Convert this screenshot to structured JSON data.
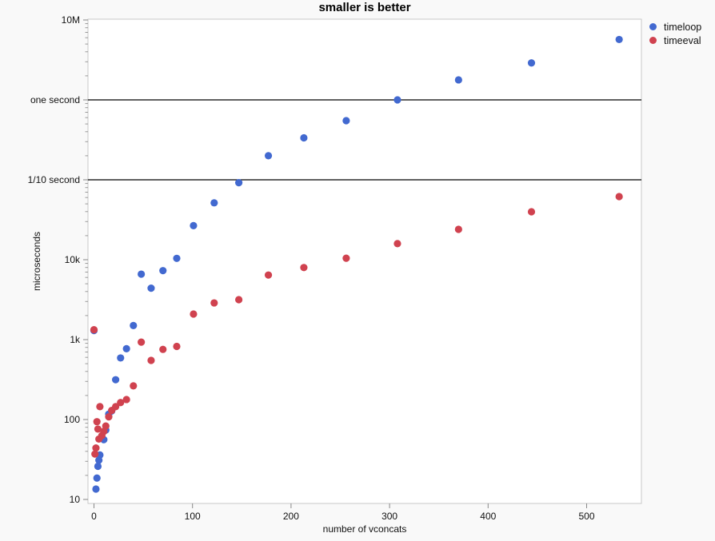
{
  "title": "smaller is better",
  "legend": [
    {
      "label": "timeloop",
      "color": "#4269d0"
    },
    {
      "label": "timeeval",
      "color": "#d0424f"
    }
  ],
  "axes": {
    "x": {
      "label": "number of vconcats",
      "ticks": [
        0,
        100,
        200,
        300,
        400,
        500
      ]
    },
    "y": {
      "label": "microseconds",
      "scale": "log",
      "ticks": [
        {
          "value": 10,
          "label": "10"
        },
        {
          "value": 100,
          "label": "100"
        },
        {
          "value": 1000,
          "label": "1k"
        },
        {
          "value": 10000,
          "label": "10k"
        },
        {
          "value": 100000,
          "label": "1/10 second"
        },
        {
          "value": 1000000,
          "label": "one second"
        },
        {
          "value": 10000000,
          "label": "10M"
        }
      ],
      "reference_lines": [
        100000,
        1000000
      ]
    }
  },
  "chart_data": {
    "type": "scatter",
    "title": "smaller is better",
    "xlabel": "number of vconcats",
    "ylabel": "microseconds",
    "x_range": [
      0,
      555
    ],
    "y_range_log": [
      10,
      10000000
    ],
    "grid": false,
    "legend_position": "top-right",
    "marker_radius": 4.6,
    "series": [
      {
        "name": "timeloop",
        "color": "#4269d0",
        "points": [
          [
            0,
            1300
          ],
          [
            2,
            13.5
          ],
          [
            3,
            18.5
          ],
          [
            4,
            26
          ],
          [
            5,
            31
          ],
          [
            6,
            36
          ],
          [
            10,
            56
          ],
          [
            12,
            74
          ],
          [
            15,
            117
          ],
          [
            18,
            128
          ],
          [
            22,
            315
          ],
          [
            27,
            590
          ],
          [
            33,
            770
          ],
          [
            40,
            1500
          ],
          [
            48,
            6600
          ],
          [
            58,
            4400
          ],
          [
            70,
            7300
          ],
          [
            84,
            10400
          ],
          [
            101,
            26700
          ],
          [
            122,
            51500
          ],
          [
            147,
            92000
          ],
          [
            177,
            200000
          ],
          [
            213,
            335000
          ],
          [
            256,
            550000
          ],
          [
            308,
            1000000
          ],
          [
            370,
            1780000
          ],
          [
            444,
            2900000
          ],
          [
            533,
            5700000
          ]
        ]
      },
      {
        "name": "timeeval",
        "color": "#d0424f",
        "points": [
          [
            0,
            1330
          ],
          [
            1,
            37
          ],
          [
            2,
            44
          ],
          [
            3,
            94
          ],
          [
            4,
            76
          ],
          [
            5,
            57
          ],
          [
            6,
            145
          ],
          [
            8,
            63
          ],
          [
            10,
            71
          ],
          [
            12,
            83
          ],
          [
            15,
            108
          ],
          [
            18,
            130
          ],
          [
            22,
            145
          ],
          [
            27,
            163
          ],
          [
            33,
            178
          ],
          [
            40,
            264
          ],
          [
            48,
            930
          ],
          [
            58,
            550
          ],
          [
            70,
            755
          ],
          [
            84,
            822
          ],
          [
            101,
            2090
          ],
          [
            122,
            2880
          ],
          [
            147,
            3160
          ],
          [
            177,
            6430
          ],
          [
            213,
            7980
          ],
          [
            256,
            10450
          ],
          [
            308,
            15900
          ],
          [
            370,
            24000
          ],
          [
            444,
            39800
          ],
          [
            533,
            61700
          ]
        ]
      }
    ]
  }
}
